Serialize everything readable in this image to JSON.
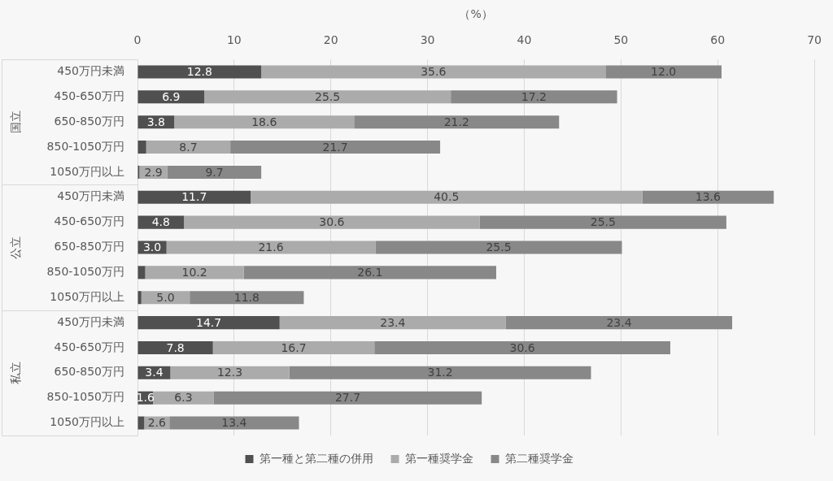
{
  "chart_data": {
    "type": "bar",
    "orientation": "horizontal",
    "stacked": true,
    "xlabel": "（%）",
    "categories": [
      "450万円未満",
      "450-650万円",
      "650-850万円",
      "850-1050万円",
      "1050万円以上",
      "450万円未満",
      "450-650万円",
      "650-850万円",
      "850-1050万円",
      "1050万円以上",
      "450万円未満",
      "450-650万円",
      "650-850万円",
      "850-1050万円",
      "1050万円以上"
    ],
    "annotations": [
      "国立",
      "公立",
      "私立"
    ],
    "series": [
      {
        "name": "第一種と第二種の併用",
        "color": "#505050",
        "values": [
          12.8,
          6.9,
          3.8,
          0.9,
          0.2,
          11.7,
          4.8,
          3.0,
          0.8,
          0.4,
          14.7,
          7.8,
          3.4,
          1.6,
          0.7
        ],
        "value_labels": [
          "12.8",
          "6.9",
          "3.8",
          null,
          null,
          "11.7",
          "4.8",
          "3.0",
          null,
          null,
          "14.7",
          "7.8",
          "3.4",
          "1.6",
          null
        ]
      },
      {
        "name": "第一種奨学金",
        "color": "#ababab",
        "values": [
          35.6,
          25.5,
          18.6,
          8.7,
          2.9,
          40.5,
          30.6,
          21.6,
          10.2,
          5.0,
          23.4,
          16.7,
          12.3,
          6.3,
          2.6
        ],
        "value_labels": [
          "35.6",
          "25.5",
          "18.6",
          "8.7",
          "2.9",
          "40.5",
          "30.6",
          "21.6",
          "10.2",
          "5.0",
          "23.4",
          "16.7",
          "12.3",
          "6.3",
          "2.6"
        ]
      },
      {
        "name": "第二種奨学金",
        "color": "#888888",
        "values": [
          12.0,
          17.2,
          21.2,
          21.7,
          9.7,
          13.6,
          25.5,
          25.5,
          26.1,
          11.8,
          23.4,
          30.6,
          31.2,
          27.7,
          13.4
        ],
        "value_labels": [
          "12.0",
          "17.2",
          "21.2",
          "21.7",
          "9.7",
          "13.6",
          "25.5",
          "25.5",
          "26.1",
          "11.8",
          "23.4",
          "30.6",
          "31.2",
          "27.7",
          "13.4"
        ]
      }
    ],
    "xlim": [
      0,
      70
    ],
    "xticks": [
      0,
      10,
      20,
      30,
      40,
      50,
      60,
      70
    ],
    "grid": "x",
    "legend": "bottom"
  }
}
